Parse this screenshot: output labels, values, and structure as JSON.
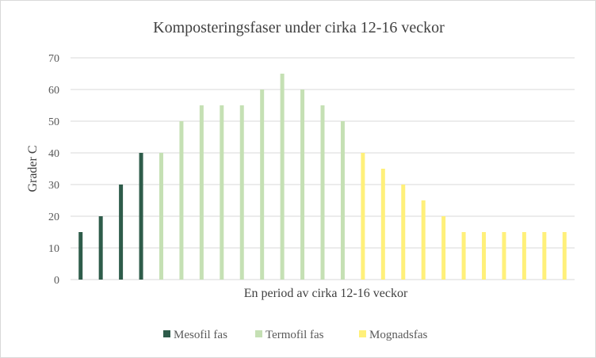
{
  "chart_data": {
    "type": "bar",
    "title": "Komposteringsfaser under cirka 12-16  veckor",
    "xlabel": "En period av cirka 12-16 veckor",
    "ylabel": "Grader C",
    "ylim": [
      0,
      70
    ],
    "yticks": [
      "0",
      "10",
      "20",
      "30",
      "40",
      "50",
      "60",
      "70"
    ],
    "grid": true,
    "legend_position": "bottom",
    "series": [
      {
        "name": "Mesofil fas",
        "color": "#2e5c4a",
        "values": [
          15,
          20,
          30,
          40
        ]
      },
      {
        "name": "Termofil fas",
        "color": "#c5e0b4",
        "values": [
          40,
          50,
          55,
          55,
          55,
          60,
          65,
          60,
          55,
          50
        ]
      },
      {
        "name": "Mognadsfas",
        "color": "#fff07a",
        "values": [
          40,
          35,
          30,
          25,
          20,
          15,
          15,
          15,
          15,
          15,
          15
        ]
      }
    ]
  }
}
